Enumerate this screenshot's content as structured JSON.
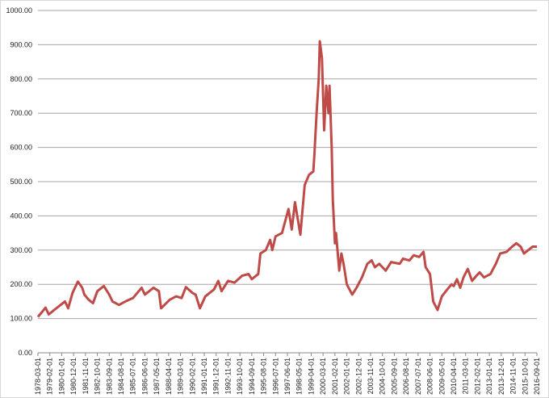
{
  "chart_data": {
    "type": "line",
    "color": "#be4b48",
    "grid": true,
    "x": [
      "1978-03-01",
      "1978-07-01",
      "1978-10-01",
      "1979-01-01",
      "1979-06-01",
      "1979-12-01",
      "1980-04-01",
      "1980-07-01",
      "1980-11-01",
      "1981-04-01",
      "1981-08-01",
      "1981-10-01",
      "1982-02-01",
      "1982-06-01",
      "1982-10-01",
      "1983-04-01",
      "1983-09-01",
      "1983-12-01",
      "1984-06-01",
      "1984-12-01",
      "1985-07-01",
      "1986-03-01",
      "1986-06-01",
      "1987-02-01",
      "1987-07-01",
      "1987-09-01",
      "1988-05-01",
      "1988-11-01",
      "1989-04-01",
      "1989-08-01",
      "1990-02-01",
      "1990-05-01",
      "1990-09-01",
      "1991-02-01",
      "1991-10-01",
      "1992-02-01",
      "1992-05-01",
      "1992-11-01",
      "1993-05-01",
      "1993-12-01",
      "1994-06-01",
      "1994-09-01",
      "1995-03-01",
      "1995-05-01",
      "1995-10-01",
      "1996-02-01",
      "1996-04-01",
      "1996-07-01",
      "1997-01-01",
      "1997-07-01",
      "1997-10-01",
      "1998-01-01",
      "1998-06-01",
      "1998-10-01",
      "1999-02-01",
      "1999-06-01",
      "1999-07-01",
      "1999-09-01",
      "1999-11-01",
      "1999-12-01",
      "2000-02-01",
      "2000-04-01",
      "2000-06-01",
      "2000-08-01",
      "2000-09-01",
      "2000-11-01",
      "2000-12-01",
      "2001-02-01",
      "2001-03-01",
      "2001-06-01",
      "2001-08-01",
      "2001-10-01",
      "2002-01-01",
      "2002-06-01",
      "2002-10-01",
      "2003-03-01",
      "2003-08-01",
      "2003-12-01",
      "2004-03-01",
      "2004-07-01",
      "2005-01-01",
      "2005-06-01",
      "2006-02-01",
      "2006-05-01",
      "2006-11-01",
      "2007-03-01",
      "2007-08-01",
      "2007-12-01",
      "2008-02-01",
      "2008-06-01",
      "2008-09-01",
      "2009-01-01",
      "2009-05-01",
      "2009-10-01",
      "2010-02-01",
      "2010-04-01",
      "2010-07-01",
      "2010-10-01",
      "2011-01-01",
      "2011-05-01",
      "2011-09-01",
      "2012-01-01",
      "2012-04-01",
      "2012-08-01",
      "2013-02-01",
      "2013-07-01",
      "2013-11-01",
      "2014-05-01",
      "2014-10-01",
      "2015-02-01",
      "2015-06-01",
      "2015-09-01",
      "2016-01-01",
      "2016-05-01",
      "2016-09-01"
    ],
    "values": [
      105,
      120,
      132,
      112,
      125,
      140,
      150,
      130,
      175,
      208,
      190,
      170,
      155,
      145,
      180,
      195,
      170,
      150,
      140,
      150,
      160,
      190,
      170,
      190,
      180,
      130,
      155,
      165,
      160,
      192,
      175,
      170,
      130,
      165,
      185,
      210,
      180,
      210,
      205,
      225,
      230,
      215,
      230,
      290,
      300,
      330,
      300,
      340,
      350,
      420,
      360,
      440,
      345,
      490,
      520,
      530,
      580,
      700,
      800,
      910,
      860,
      650,
      780,
      700,
      780,
      600,
      450,
      320,
      350,
      240,
      290,
      260,
      200,
      170,
      190,
      220,
      260,
      270,
      250,
      260,
      240,
      265,
      260,
      275,
      270,
      285,
      280,
      295,
      250,
      230,
      150,
      125,
      165,
      185,
      200,
      195,
      215,
      190,
      220,
      245,
      210,
      225,
      235,
      220,
      230,
      260,
      290,
      295,
      310,
      320,
      310,
      290,
      300,
      310,
      310
    ],
    "xlim": [
      "1978-03-01",
      "2016-09-01"
    ],
    "xticks": [
      "1978-03-01",
      "1979-02-01",
      "1980-01-01",
      "1980-12-01",
      "1981-11-01",
      "1982-10-01",
      "1983-09-01",
      "1984-08-01",
      "1985-07-01",
      "1986-06-01",
      "1987-05-01",
      "1988-04-01",
      "1989-03-01",
      "1990-02-01",
      "1991-01-01",
      "1991-12-01",
      "1992-11-01",
      "1993-10-01",
      "1994-09-01",
      "1995-08-01",
      "1996-07-01",
      "1997-06-01",
      "1998-05-01",
      "1999-04-01",
      "2000-03-01",
      "2001-02-01",
      "2002-01-01",
      "2002-12-01",
      "2003-11-01",
      "2004-10-01",
      "2005-09-01",
      "2006-08-01",
      "2007-07-01",
      "2008-06-01",
      "2009-05-01",
      "2010-04-01",
      "2011-03-01",
      "2012-02-01",
      "2013-01-01",
      "2013-12-01",
      "2014-11-01",
      "2015-10-01",
      "2016-09-01"
    ],
    "ylim": [
      0,
      1000
    ],
    "yticks": [
      {
        "value": 0,
        "label": "0.00"
      },
      {
        "value": 100,
        "label": "100.00"
      },
      {
        "value": 200,
        "label": "200.00"
      },
      {
        "value": 300,
        "label": "300.00"
      },
      {
        "value": 400,
        "label": "400.00"
      },
      {
        "value": 500,
        "label": "500.00"
      },
      {
        "value": 600,
        "label": "600.00"
      },
      {
        "value": 700,
        "label": "700.00"
      },
      {
        "value": 800,
        "label": "800.00"
      },
      {
        "value": 900,
        "label": "900.00"
      },
      {
        "value": 1000,
        "label": "1000.00"
      }
    ]
  }
}
